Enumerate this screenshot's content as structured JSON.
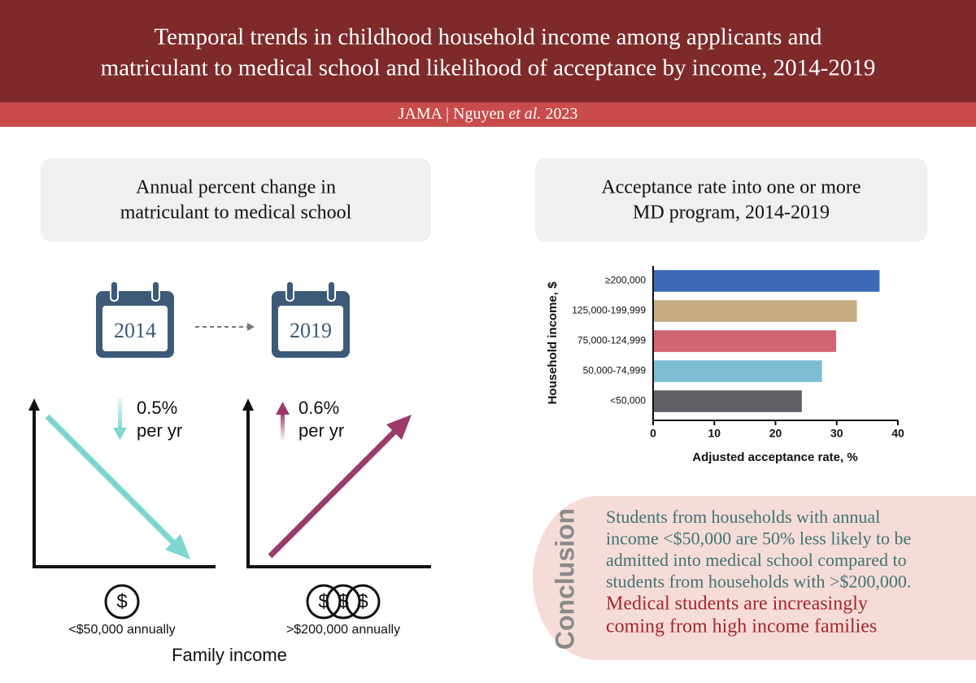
{
  "header": {
    "title": [
      "Temporal trends in childhood household income among applicants and",
      "matriculant to medical school and likelihood of acceptance by income, 2014-2019"
    ],
    "subtitle": [
      "JAMA | Nguyen",
      "et al.",
      "2023"
    ]
  },
  "left_panel": {
    "title": [
      "Annual percent change in",
      "matriculant to medical school"
    ],
    "start_year": "2014",
    "end_year": "2019",
    "low_change": [
      "0.5%",
      "per yr"
    ],
    "high_change": [
      "0.6%",
      "per yr"
    ],
    "currency_symbol": "$",
    "low_label": "<$50,000 annually",
    "high_label": ">$200,000 annually",
    "axis_label": "Family income"
  },
  "chart_data": {
    "type": "bar",
    "orientation": "horizontal",
    "title": [
      "Acceptance rate into one or more",
      "MD program, 2014-2019"
    ],
    "categories": [
      "≥200,000",
      "125,000-199,999",
      "75,000-124,999",
      "50,000-74,999",
      "<50,000"
    ],
    "values": [
      37,
      33.3,
      29.9,
      27.6,
      24.3
    ],
    "colors": [
      "#3e6bb8",
      "#c8ac83",
      "#d06574",
      "#7cbdd3",
      "#5f6167"
    ],
    "xlim": [
      0,
      40
    ],
    "xticks": [
      0,
      10,
      20,
      30,
      40
    ],
    "xlabel": "Adjusted acceptance rate, %",
    "ylabel": "Household income, $"
  },
  "conclusion": {
    "heading": "Conclusion",
    "finding": [
      "Students from households with annual",
      "income <$50,000 are 50% less likely to be",
      "admitted into medical school compared to",
      "students from households with >$200,000."
    ],
    "trend": [
      "Medical students are increasingly",
      "coming from high income families"
    ]
  }
}
